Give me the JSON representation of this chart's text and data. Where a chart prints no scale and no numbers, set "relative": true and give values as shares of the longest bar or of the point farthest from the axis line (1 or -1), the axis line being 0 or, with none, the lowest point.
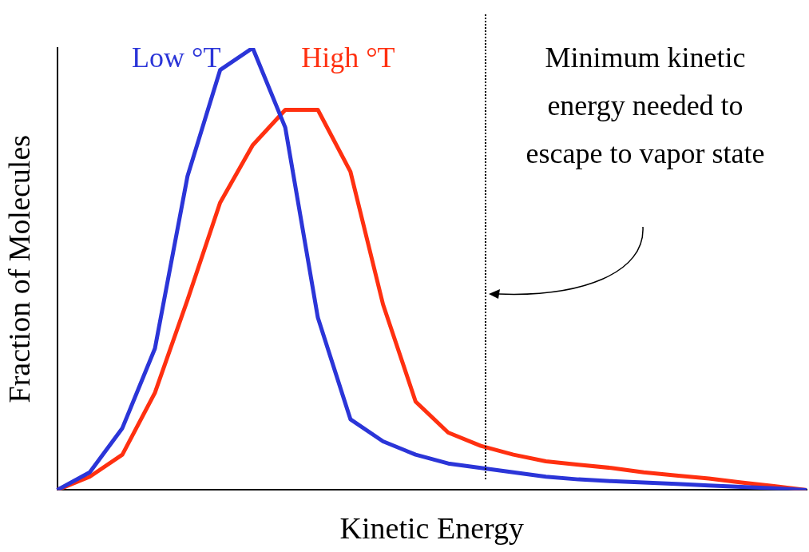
{
  "chart_data": {
    "type": "line",
    "relative": true,
    "xlabel": "Kinetic Energy",
    "ylabel": "Fraction of Molecules",
    "categories": [
      null,
      null,
      null,
      null,
      null,
      null,
      null,
      null,
      null,
      null,
      null,
      null,
      null,
      null,
      null,
      null,
      null,
      null,
      null,
      null,
      null,
      null,
      null,
      null
    ],
    "series": [
      {
        "name": "Low °T",
        "color": "#2b35d8",
        "values": [
          0,
          0.04,
          0.14,
          0.32,
          0.71,
          0.95,
          1,
          0.82,
          0.39,
          0.16,
          0.11,
          0.08,
          0.06,
          0.05,
          0.04,
          0.03,
          0.024,
          0.02,
          0.017,
          0.014,
          0.01,
          0.007,
          0.004,
          0
        ]
      },
      {
        "name": "High °T",
        "color": "#ff3010",
        "values": [
          0,
          0.03,
          0.08,
          0.22,
          0.43,
          0.65,
          0.78,
          0.86,
          0.86,
          0.72,
          0.42,
          0.2,
          0.13,
          0.1,
          0.08,
          0.065,
          0.057,
          0.05,
          0.04,
          0.033,
          0.026,
          0.017,
          0.009,
          0
        ]
      }
    ],
    "annotations": [
      "Minimum kinetic energy needed to escape to vapor state"
    ],
    "legend": false,
    "grid": false,
    "marker": "none",
    "line_style": "solid"
  }
}
